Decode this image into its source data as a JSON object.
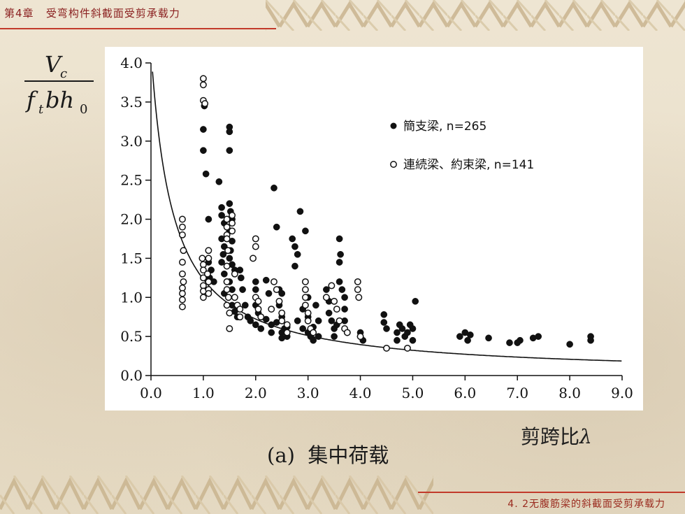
{
  "header": {
    "chapter": "第4章",
    "chapter_title": "受弯构件斜截面受剪承载力",
    "section": "4. 2无腹筋梁的斜截面受剪承载力"
  },
  "figure": {
    "caption": "(a)  集中荷载",
    "xlabel_text": "剪跨比",
    "xlabel_symbol": "λ",
    "ylabel_numerator": "V",
    "ylabel_numerator_sub": "c",
    "ylabel_denominator": "f",
    "ylabel_denominator_sub1": "t",
    "ylabel_denominator_mid": "bh",
    "ylabel_denominator_sub2": "0"
  },
  "colors": {
    "accent": "#c23a2b",
    "ink": "#1a1a1a"
  },
  "chart_data": {
    "type": "scatter",
    "xlim": [
      0,
      9
    ],
    "ylim": [
      0,
      4
    ],
    "x_ticks": [
      "0.0",
      "1.0",
      "2.0",
      "3.0",
      "4.0",
      "5.0",
      "6.0",
      "7.0",
      "8.0",
      "9.0"
    ],
    "y_ticks": [
      "0.0",
      "0.5",
      "1.0",
      "1.5",
      "2.0",
      "2.5",
      "3.0",
      "3.5",
      "4.0"
    ],
    "grid": false,
    "legend_position": "top-right",
    "series": [
      {
        "name": "簡支梁, n=265",
        "marker": "filled-circle",
        "points": [
          [
            1.0,
            3.15
          ],
          [
            1.0,
            2.88
          ],
          [
            1.02,
            3.45
          ],
          [
            1.05,
            2.58
          ],
          [
            1.1,
            2.0
          ],
          [
            1.1,
            1.45
          ],
          [
            1.12,
            1.25
          ],
          [
            1.15,
            1.35
          ],
          [
            1.2,
            1.2
          ],
          [
            1.3,
            2.48
          ],
          [
            1.35,
            2.15
          ],
          [
            1.35,
            2.05
          ],
          [
            1.4,
            1.95
          ],
          [
            1.35,
            1.75
          ],
          [
            1.4,
            1.65
          ],
          [
            1.38,
            1.55
          ],
          [
            1.35,
            1.45
          ],
          [
            1.4,
            1.3
          ],
          [
            1.45,
            1.2
          ],
          [
            1.4,
            1.05
          ],
          [
            1.5,
            3.18
          ],
          [
            1.5,
            3.12
          ],
          [
            1.5,
            2.88
          ],
          [
            1.5,
            2.2
          ],
          [
            1.52,
            2.1
          ],
          [
            1.55,
            2.0
          ],
          [
            1.5,
            1.85
          ],
          [
            1.55,
            1.72
          ],
          [
            1.52,
            1.6
          ],
          [
            1.5,
            1.5
          ],
          [
            1.55,
            1.42
          ],
          [
            1.6,
            1.35
          ],
          [
            1.5,
            1.2
          ],
          [
            1.55,
            1.1
          ],
          [
            1.6,
            1.0
          ],
          [
            1.55,
            0.9
          ],
          [
            1.6,
            0.82
          ],
          [
            1.65,
            0.75
          ],
          [
            1.7,
            1.35
          ],
          [
            1.72,
            1.25
          ],
          [
            1.75,
            1.1
          ],
          [
            1.8,
            0.9
          ],
          [
            1.85,
            0.75
          ],
          [
            1.9,
            0.7
          ],
          [
            2.0,
            1.2
          ],
          [
            2.0,
            1.1
          ],
          [
            2.0,
            0.9
          ],
          [
            2.05,
            0.8
          ],
          [
            2.0,
            0.65
          ],
          [
            2.1,
            0.6
          ],
          [
            2.2,
            1.22
          ],
          [
            2.25,
            1.05
          ],
          [
            2.2,
            0.72
          ],
          [
            2.3,
            0.65
          ],
          [
            2.3,
            0.55
          ],
          [
            2.35,
            2.4
          ],
          [
            2.4,
            1.9
          ],
          [
            2.45,
            1.1
          ],
          [
            2.5,
            1.05
          ],
          [
            2.45,
            0.9
          ],
          [
            2.5,
            0.75
          ],
          [
            2.4,
            0.68
          ],
          [
            2.55,
            0.6
          ],
          [
            2.5,
            0.55
          ],
          [
            2.5,
            0.48
          ],
          [
            2.6,
            0.62
          ],
          [
            2.6,
            0.5
          ],
          [
            2.7,
            1.75
          ],
          [
            2.75,
            1.65
          ],
          [
            2.8,
            1.55
          ],
          [
            2.75,
            1.4
          ],
          [
            2.85,
            2.1
          ],
          [
            2.95,
            1.85
          ],
          [
            2.8,
            0.7
          ],
          [
            2.9,
            0.85
          ],
          [
            2.9,
            0.6
          ],
          [
            3.0,
            0.75
          ],
          [
            3.0,
            0.55
          ],
          [
            3.05,
            0.5
          ],
          [
            3.1,
            0.62
          ],
          [
            3.1,
            0.45
          ],
          [
            3.15,
            0.9
          ],
          [
            3.2,
            0.7
          ],
          [
            3.2,
            0.5
          ],
          [
            3.0,
            1.0
          ],
          [
            3.35,
            1.1
          ],
          [
            3.35,
            1.0
          ],
          [
            3.4,
            0.95
          ],
          [
            3.4,
            0.8
          ],
          [
            3.45,
            0.7
          ],
          [
            3.5,
            0.6
          ],
          [
            3.5,
            0.5
          ],
          [
            3.55,
            0.65
          ],
          [
            3.6,
            1.75
          ],
          [
            3.62,
            1.55
          ],
          [
            3.6,
            1.45
          ],
          [
            3.6,
            1.2
          ],
          [
            3.65,
            1.1
          ],
          [
            3.7,
            1.0
          ],
          [
            3.7,
            0.85
          ],
          [
            3.7,
            0.7
          ],
          [
            3.75,
            0.55
          ],
          [
            4.0,
            0.55
          ],
          [
            4.0,
            0.5
          ],
          [
            4.05,
            0.45
          ],
          [
            4.45,
            0.78
          ],
          [
            4.45,
            0.68
          ],
          [
            4.5,
            0.6
          ],
          [
            4.7,
            0.55
          ],
          [
            4.75,
            0.65
          ],
          [
            4.8,
            0.6
          ],
          [
            4.85,
            0.5
          ],
          [
            4.9,
            0.55
          ],
          [
            4.95,
            0.65
          ],
          [
            5.0,
            0.6
          ],
          [
            5.0,
            0.45
          ],
          [
            4.7,
            0.45
          ],
          [
            5.05,
            0.95
          ],
          [
            5.9,
            0.5
          ],
          [
            6.0,
            0.55
          ],
          [
            6.05,
            0.45
          ],
          [
            6.1,
            0.52
          ],
          [
            6.45,
            0.48
          ],
          [
            6.85,
            0.42
          ],
          [
            7.0,
            0.42
          ],
          [
            7.05,
            0.45
          ],
          [
            7.3,
            0.48
          ],
          [
            7.4,
            0.5
          ],
          [
            8.0,
            0.4
          ],
          [
            8.4,
            0.5
          ],
          [
            8.4,
            0.45
          ]
        ]
      },
      {
        "name": "連続梁、約束梁, n=141",
        "marker": "open-circle",
        "points": [
          [
            0.6,
            2.0
          ],
          [
            0.6,
            1.9
          ],
          [
            0.6,
            1.8
          ],
          [
            0.62,
            1.6
          ],
          [
            0.6,
            1.45
          ],
          [
            0.6,
            1.3
          ],
          [
            0.62,
            1.2
          ],
          [
            0.6,
            1.12
          ],
          [
            0.6,
            1.05
          ],
          [
            0.6,
            0.97
          ],
          [
            0.6,
            0.88
          ],
          [
            1.0,
            3.8
          ],
          [
            1.0,
            3.72
          ],
          [
            1.0,
            3.52
          ],
          [
            1.03,
            3.48
          ],
          [
            0.98,
            1.5
          ],
          [
            1.0,
            1.42
          ],
          [
            1.0,
            1.35
          ],
          [
            1.0,
            1.25
          ],
          [
            1.0,
            1.15
          ],
          [
            1.0,
            1.08
          ],
          [
            1.0,
            1.0
          ],
          [
            1.1,
            1.6
          ],
          [
            1.1,
            1.5
          ],
          [
            1.08,
            1.3
          ],
          [
            1.1,
            1.2
          ],
          [
            1.1,
            1.1
          ],
          [
            1.1,
            1.05
          ],
          [
            1.45,
            2.0
          ],
          [
            1.45,
            1.9
          ],
          [
            1.45,
            1.8
          ],
          [
            1.45,
            1.75
          ],
          [
            1.47,
            1.6
          ],
          [
            1.45,
            1.4
          ],
          [
            1.45,
            1.2
          ],
          [
            1.45,
            1.1
          ],
          [
            1.48,
            1.0
          ],
          [
            1.45,
            0.9
          ],
          [
            1.5,
            0.8
          ],
          [
            1.5,
            0.6
          ],
          [
            1.55,
            2.05
          ],
          [
            1.55,
            1.95
          ],
          [
            1.55,
            1.85
          ],
          [
            1.6,
            1.3
          ],
          [
            1.6,
            1.0
          ],
          [
            1.65,
            0.9
          ],
          [
            1.7,
            0.85
          ],
          [
            1.7,
            0.75
          ],
          [
            2.0,
            1.75
          ],
          [
            2.0,
            1.65
          ],
          [
            1.95,
            1.5
          ],
          [
            2.0,
            1.0
          ],
          [
            2.05,
            0.95
          ],
          [
            2.05,
            0.85
          ],
          [
            2.1,
            0.75
          ],
          [
            2.3,
            0.85
          ],
          [
            2.35,
            1.2
          ],
          [
            2.4,
            1.1
          ],
          [
            2.45,
            0.95
          ],
          [
            2.5,
            0.8
          ],
          [
            2.5,
            0.7
          ],
          [
            2.6,
            0.65
          ],
          [
            2.6,
            0.55
          ],
          [
            2.95,
            1.2
          ],
          [
            2.95,
            1.1
          ],
          [
            2.95,
            1.0
          ],
          [
            2.95,
            0.9
          ],
          [
            3.0,
            0.8
          ],
          [
            3.0,
            0.7
          ],
          [
            3.05,
            0.6
          ],
          [
            3.1,
            0.55
          ],
          [
            3.35,
            1.0
          ],
          [
            3.45,
            1.15
          ],
          [
            3.5,
            0.95
          ],
          [
            3.55,
            0.85
          ],
          [
            3.6,
            0.7
          ],
          [
            3.7,
            0.6
          ],
          [
            3.75,
            0.55
          ],
          [
            3.95,
            1.2
          ],
          [
            3.95,
            1.1
          ],
          [
            3.97,
            1.0
          ],
          [
            4.0,
            0.5
          ],
          [
            4.5,
            0.35
          ],
          [
            4.9,
            0.35
          ]
        ]
      }
    ],
    "curve": {
      "description": "lower envelope",
      "formula": "y = 1.75/(x+1)"
    }
  }
}
